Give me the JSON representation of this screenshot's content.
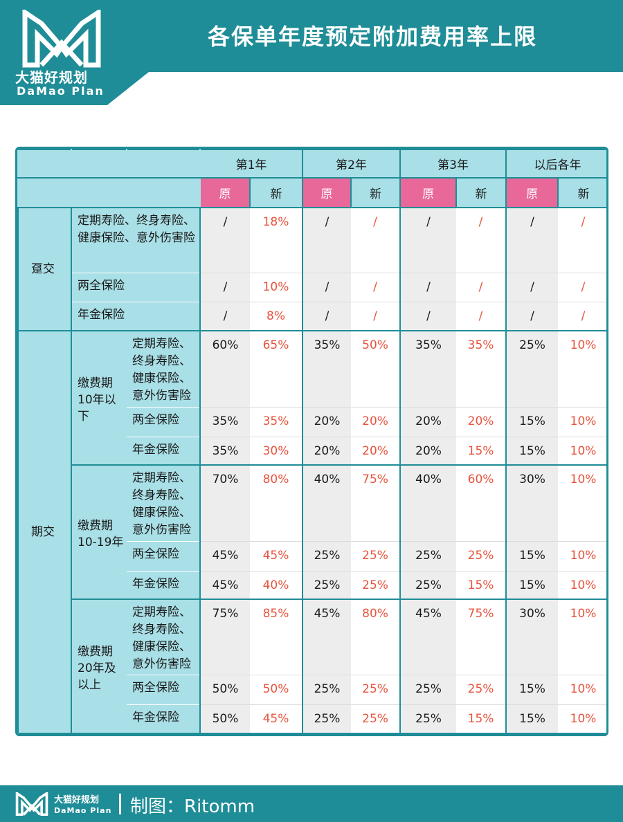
{
  "brand": {
    "name_cn": "大猫好规划",
    "name_en": "DaMao Plan"
  },
  "title": "各保单年度预定附加费用率上限",
  "table": {
    "years": [
      "第1年",
      "第2年",
      "第3年",
      "以后各年"
    ],
    "orig_label": "原",
    "new_label": "新",
    "groups": {
      "single": {
        "label": "趸交",
        "rows": [
          {
            "label": "定期寿险、终身寿险、健康保险、意外伤害险",
            "values": [
              "/",
              "18%",
              "/",
              "/",
              "/",
              "/",
              "/",
              "/"
            ]
          },
          {
            "label": "两全保险",
            "values": [
              "/",
              "10%",
              "/",
              "/",
              "/",
              "/",
              "/",
              "/"
            ]
          },
          {
            "label": "年金保险",
            "values": [
              "/",
              "8%",
              "/",
              "/",
              "/",
              "/",
              "/",
              "/"
            ]
          }
        ]
      },
      "periodic": {
        "label": "期交",
        "periods": [
          {
            "label": "缴费期10年以下",
            "rows": [
              {
                "label": "定期寿险、终身寿险、健康保险、意外伤害险",
                "values": [
                  "60%",
                  "65%",
                  "35%",
                  "50%",
                  "35%",
                  "35%",
                  "25%",
                  "10%"
                ]
              },
              {
                "label": "两全保险",
                "values": [
                  "35%",
                  "35%",
                  "20%",
                  "20%",
                  "20%",
                  "20%",
                  "15%",
                  "10%"
                ]
              },
              {
                "label": "年金保险",
                "values": [
                  "35%",
                  "30%",
                  "20%",
                  "20%",
                  "20%",
                  "15%",
                  "15%",
                  "10%"
                ]
              }
            ]
          },
          {
            "label": "缴费期10-19年",
            "rows": [
              {
                "label": "定期寿险、终身寿险、健康保险、意外伤害险",
                "values": [
                  "70%",
                  "80%",
                  "40%",
                  "75%",
                  "40%",
                  "60%",
                  "30%",
                  "10%"
                ]
              },
              {
                "label": "两全保险",
                "values": [
                  "45%",
                  "45%",
                  "25%",
                  "25%",
                  "25%",
                  "25%",
                  "15%",
                  "10%"
                ]
              },
              {
                "label": "年金保险",
                "values": [
                  "45%",
                  "40%",
                  "25%",
                  "25%",
                  "25%",
                  "15%",
                  "15%",
                  "10%"
                ]
              }
            ]
          },
          {
            "label": "缴费期20年及以上",
            "rows": [
              {
                "label": "定期寿险、终身寿险、健康保险、意外伤害险",
                "values": [
                  "75%",
                  "85%",
                  "45%",
                  "80%",
                  "45%",
                  "75%",
                  "30%",
                  "10%"
                ]
              },
              {
                "label": "两全保险",
                "values": [
                  "50%",
                  "50%",
                  "25%",
                  "25%",
                  "25%",
                  "25%",
                  "15%",
                  "10%"
                ]
              },
              {
                "label": "年金保险",
                "values": [
                  "50%",
                  "45%",
                  "25%",
                  "25%",
                  "25%",
                  "15%",
                  "15%",
                  "10%"
                ]
              }
            ]
          }
        ]
      }
    }
  },
  "footer": {
    "credit": "制图：Ritomm"
  },
  "colors": {
    "teal": "#1f8d97",
    "light_teal": "#a9dfe6",
    "pink": "#e8689a",
    "red_text": "#e8533d",
    "gray_cell": "#ededed"
  }
}
